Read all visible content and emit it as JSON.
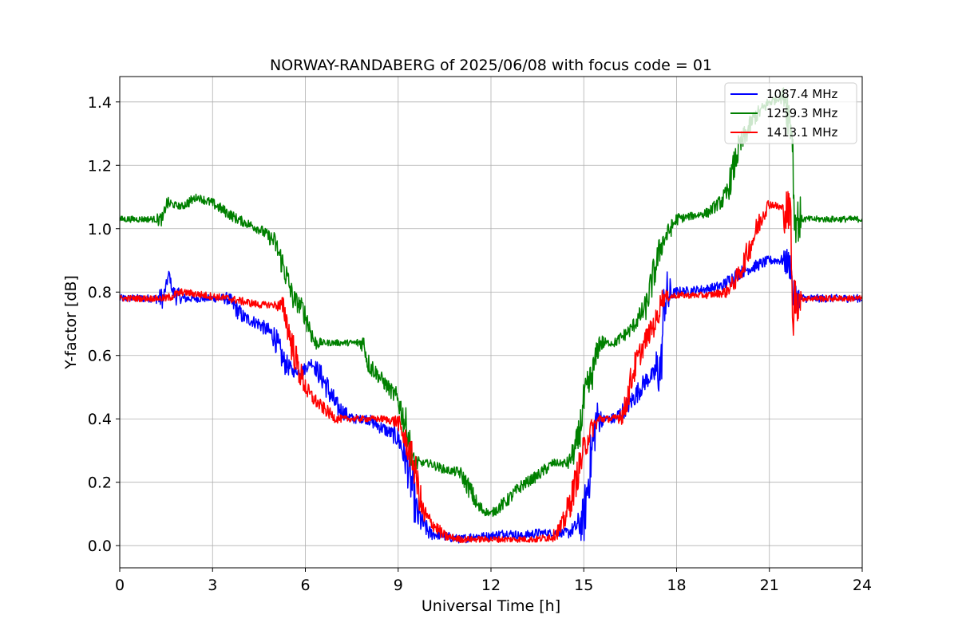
{
  "chart_data": {
    "type": "line",
    "title": "NORWAY-RANDABERG of 2025/06/08 with focus code = 01",
    "xlabel": "Universal Time [h]",
    "ylabel": "Y-factor [dB]",
    "xlim": [
      0,
      24
    ],
    "ylim": [
      -0.07,
      1.48
    ],
    "xticks": [
      0,
      3,
      6,
      9,
      12,
      15,
      18,
      21,
      24
    ],
    "xtick_labels": [
      "0",
      "3",
      "6",
      "9",
      "12",
      "15",
      "18",
      "21",
      "24"
    ],
    "yticks": [
      0.0,
      0.2,
      0.4,
      0.6,
      0.8,
      1.0,
      1.2,
      1.4
    ],
    "ytick_labels": [
      "0.0",
      "0.2",
      "0.4",
      "0.6",
      "0.8",
      "1.0",
      "1.2",
      "1.4"
    ],
    "grid": true,
    "legend_position": "top-right",
    "series": [
      {
        "name": "1087.4 MHz",
        "color": "#0000ff",
        "noise": 0.05,
        "x": [
          0,
          1.4,
          1.6,
          1.7,
          2.0,
          3.5,
          4.0,
          4.5,
          5.0,
          5.3,
          5.6,
          5.9,
          6.2,
          6.6,
          7.0,
          7.5,
          8.0,
          8.5,
          9.0,
          9.3,
          9.6,
          10.0,
          10.5,
          11.0,
          11.5,
          12.0,
          12.5,
          13.0,
          13.5,
          14.0,
          14.5,
          15.0,
          15.2,
          15.4,
          16.0,
          16.5,
          17.0,
          17.5,
          17.6,
          18.0,
          19.0,
          19.5,
          20.0,
          20.5,
          21.0,
          21.5,
          21.7,
          21.75,
          22.0,
          24.0
        ],
        "y": [
          0.78,
          0.78,
          0.86,
          0.8,
          0.78,
          0.78,
          0.72,
          0.7,
          0.66,
          0.58,
          0.55,
          0.55,
          0.58,
          0.52,
          0.44,
          0.4,
          0.4,
          0.37,
          0.34,
          0.26,
          0.1,
          0.04,
          0.03,
          0.02,
          0.03,
          0.03,
          0.04,
          0.03,
          0.04,
          0.04,
          0.04,
          0.08,
          0.25,
          0.4,
          0.4,
          0.45,
          0.52,
          0.56,
          0.78,
          0.8,
          0.81,
          0.82,
          0.86,
          0.88,
          0.9,
          0.9,
          0.88,
          0.79,
          0.78,
          0.78
        ]
      },
      {
        "name": "1259.3 MHz",
        "color": "#008000",
        "noise": 0.04,
        "x": [
          0,
          1.4,
          1.5,
          2.0,
          2.5,
          3.0,
          3.8,
          4.5,
          5.0,
          5.3,
          5.6,
          5.9,
          6.1,
          6.3,
          7.0,
          7.5,
          7.9,
          8.0,
          8.5,
          9.0,
          9.3,
          9.5,
          10.0,
          10.5,
          11.0,
          11.3,
          11.6,
          12.0,
          12.5,
          13.0,
          13.5,
          14.0,
          14.5,
          14.8,
          15.0,
          15.3,
          15.5,
          16.0,
          16.5,
          17.0,
          17.5,
          18.0,
          19.0,
          19.6,
          20.0,
          20.5,
          21.0,
          21.5,
          21.75,
          21.8,
          24.0
        ],
        "y": [
          1.03,
          1.03,
          1.08,
          1.07,
          1.1,
          1.08,
          1.03,
          1.0,
          0.96,
          0.88,
          0.78,
          0.75,
          0.7,
          0.64,
          0.64,
          0.64,
          0.64,
          0.58,
          0.52,
          0.46,
          0.36,
          0.26,
          0.26,
          0.24,
          0.23,
          0.18,
          0.12,
          0.1,
          0.14,
          0.19,
          0.22,
          0.26,
          0.26,
          0.32,
          0.45,
          0.55,
          0.64,
          0.64,
          0.68,
          0.75,
          0.95,
          1.03,
          1.05,
          1.1,
          1.25,
          1.35,
          1.4,
          1.42,
          1.3,
          1.03,
          1.03
        ]
      },
      {
        "name": "1413.1 MHz",
        "color": "#ff0000",
        "noise": 0.04,
        "x": [
          0,
          1.5,
          2.0,
          3.5,
          4.0,
          4.5,
          5.0,
          5.3,
          5.5,
          5.8,
          6.1,
          6.5,
          7.0,
          7.5,
          8.0,
          8.5,
          9.0,
          9.5,
          9.8,
          10.2,
          10.5,
          11.0,
          11.5,
          12.0,
          12.5,
          13.0,
          13.5,
          14.0,
          14.3,
          14.6,
          15.0,
          15.2,
          15.5,
          16.0,
          16.3,
          16.6,
          17.0,
          17.4,
          17.5,
          18.0,
          19.0,
          19.6,
          20.0,
          20.4,
          20.8,
          21.0,
          21.5,
          21.7,
          21.75,
          21.8,
          24.0
        ],
        "y": [
          0.78,
          0.78,
          0.8,
          0.78,
          0.77,
          0.76,
          0.76,
          0.75,
          0.66,
          0.55,
          0.48,
          0.44,
          0.4,
          0.4,
          0.4,
          0.4,
          0.39,
          0.26,
          0.1,
          0.06,
          0.03,
          0.02,
          0.02,
          0.02,
          0.02,
          0.02,
          0.02,
          0.03,
          0.06,
          0.15,
          0.3,
          0.36,
          0.4,
          0.4,
          0.42,
          0.55,
          0.65,
          0.72,
          0.78,
          0.79,
          0.79,
          0.8,
          0.85,
          0.95,
          1.05,
          1.08,
          1.06,
          1.04,
          0.63,
          0.78,
          0.78
        ]
      }
    ]
  }
}
